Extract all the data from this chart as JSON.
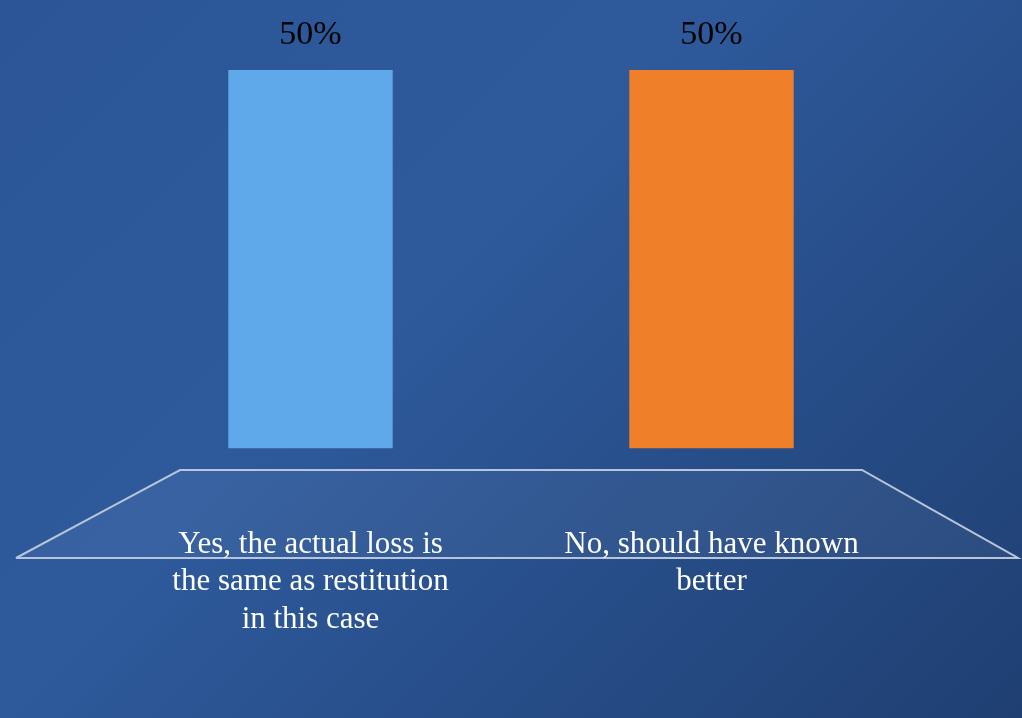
{
  "chart_data": {
    "type": "bar",
    "categories": [
      "Yes, the actual loss is the same as restitution in this case",
      "No, should have known better"
    ],
    "values": [
      50,
      50
    ],
    "colors": [
      "#5fa8ea",
      "#f07f2a"
    ],
    "value_labels": [
      "50%",
      "50%"
    ],
    "legend": false,
    "grid": false
  }
}
